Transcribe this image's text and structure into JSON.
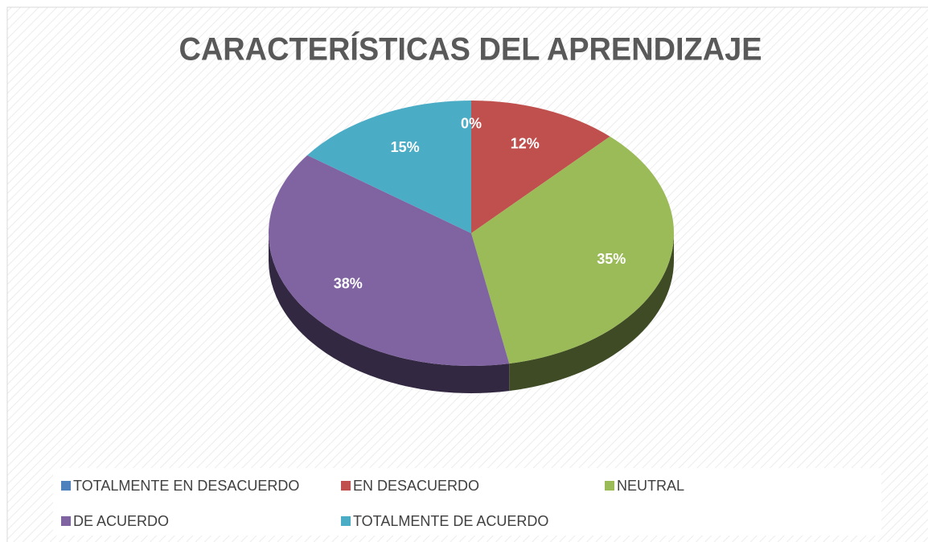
{
  "chart_data": {
    "type": "pie",
    "title": "CARACTERÍSTICAS DEL APRENDIZAJE",
    "categories": [
      "TOTALMENTE EN DESACUERDO",
      "EN DESACUERDO",
      "NEUTRAL",
      "DE ACUERDO",
      "TOTALMENTE DE ACUERDO"
    ],
    "values": [
      0,
      12,
      35,
      38,
      15
    ],
    "value_labels": [
      "0%",
      "12%",
      "35%",
      "38%",
      "15%"
    ],
    "colors": [
      "#4f81bd",
      "#c0504d",
      "#9bbb59",
      "#8064a2",
      "#4bacc6"
    ],
    "legend": "bottom"
  }
}
